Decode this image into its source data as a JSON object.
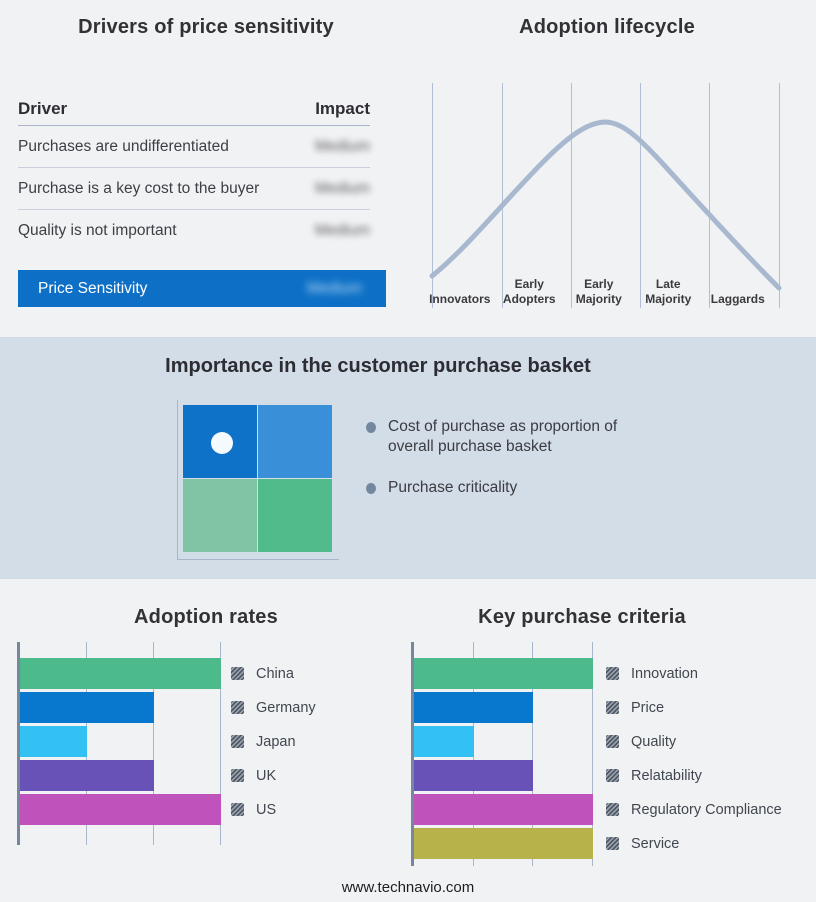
{
  "drivers_panel": {
    "title": "Drivers of price sensitivity",
    "table": {
      "col_driver": "Driver",
      "col_impact": "Impact",
      "impact_values_blurred": true,
      "rows": [
        {
          "driver": "Purchases are undifferentiated",
          "impact": "Medium"
        },
        {
          "driver": "Purchase is a key cost to the buyer",
          "impact": "Medium"
        },
        {
          "driver": "Quality is not important",
          "impact": "Medium"
        }
      ],
      "highlight_row": {
        "driver": "Price Sensitivity",
        "impact": "Medium"
      }
    },
    "accent_color": "#0d70c6"
  },
  "basket_panel": {
    "title": "Importance in the customer purchase basket",
    "bullets": [
      "Cost of purchase as proportion of overall purchase basket",
      "Purchase criticality"
    ],
    "band_color": "#d3dde8",
    "quadrant_colors": {
      "top_left": "#0e72c8",
      "top_right": "#3a90d8",
      "bottom_left": "#7fc4a4",
      "bottom_right": "#52bb8b"
    }
  },
  "footer": {
    "url": "www.technavio.com"
  },
  "chart_data": [
    {
      "id": "adoption-lifecycle",
      "type": "line",
      "title": "Adoption lifecycle",
      "x_stages": [
        "Innovators",
        "Early Adopters",
        "Early Majority",
        "Late Majority",
        "Laggards"
      ],
      "shape": "bell curve rising from Innovators, peaking over Early Majority, falling to Laggards",
      "grid": "vertical stage-boundary lines, no y axis, no numeric ticks",
      "line_color": "#a8b8cf",
      "grid_color": "#b1bfd4"
    },
    {
      "id": "adoption-rates",
      "type": "bar",
      "orientation": "horizontal",
      "title": "Adoption rates",
      "categories": [
        "China",
        "Germany",
        "Japan",
        "UK",
        "US"
      ],
      "values": [
        3,
        2,
        1,
        2,
        3
      ],
      "xlim": [
        0,
        3
      ],
      "xticks": [
        1,
        2,
        3
      ],
      "value_units": "relative (no numeric labels shown)",
      "legend_position": "right",
      "colors": [
        "#4dba8b",
        "#0878ce",
        "#33c1f3",
        "#6952b7",
        "#bf53bb"
      ]
    },
    {
      "id": "key-purchase-criteria",
      "type": "bar",
      "orientation": "horizontal",
      "title": "Key purchase criteria",
      "categories": [
        "Innovation",
        "Price",
        "Quality",
        "Relatability",
        "Regulatory Compliance",
        "Service"
      ],
      "values": [
        3,
        2,
        1,
        2,
        3,
        3
      ],
      "xlim": [
        0,
        3
      ],
      "xticks": [
        1,
        2,
        3
      ],
      "value_units": "relative (no numeric labels shown)",
      "legend_position": "right",
      "colors": [
        "#4dba8b",
        "#0878ce",
        "#33c1f3",
        "#6952b7",
        "#bf53bb",
        "#b7b24a"
      ]
    }
  ]
}
